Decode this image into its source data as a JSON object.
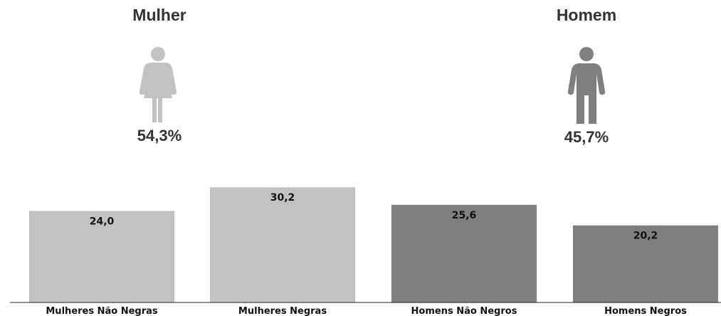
{
  "summary": {
    "female": {
      "title": "Mulher",
      "percent": "54,3%",
      "icon": "woman-icon",
      "color": "#c2c2c2"
    },
    "male": {
      "title": "Homem",
      "percent": "45,7%",
      "icon": "man-icon",
      "color": "#7f7f7f"
    }
  },
  "chart_data": {
    "type": "bar",
    "title": "",
    "xlabel": "",
    "ylabel": "",
    "categories": [
      "Mulheres Não Negras",
      "Mulheres Negras",
      "Homens Não Negros",
      "Homens Negros"
    ],
    "values": [
      24.0,
      30.2,
      25.6,
      20.2
    ],
    "value_labels": [
      "24,0",
      "30,2",
      "25,6",
      "20,2"
    ],
    "colors": [
      "#c2c2c2",
      "#c2c2c2",
      "#7f7f7f",
      "#7f7f7f"
    ],
    "ylim": [
      0,
      50
    ],
    "grid": false,
    "legend": "none"
  }
}
